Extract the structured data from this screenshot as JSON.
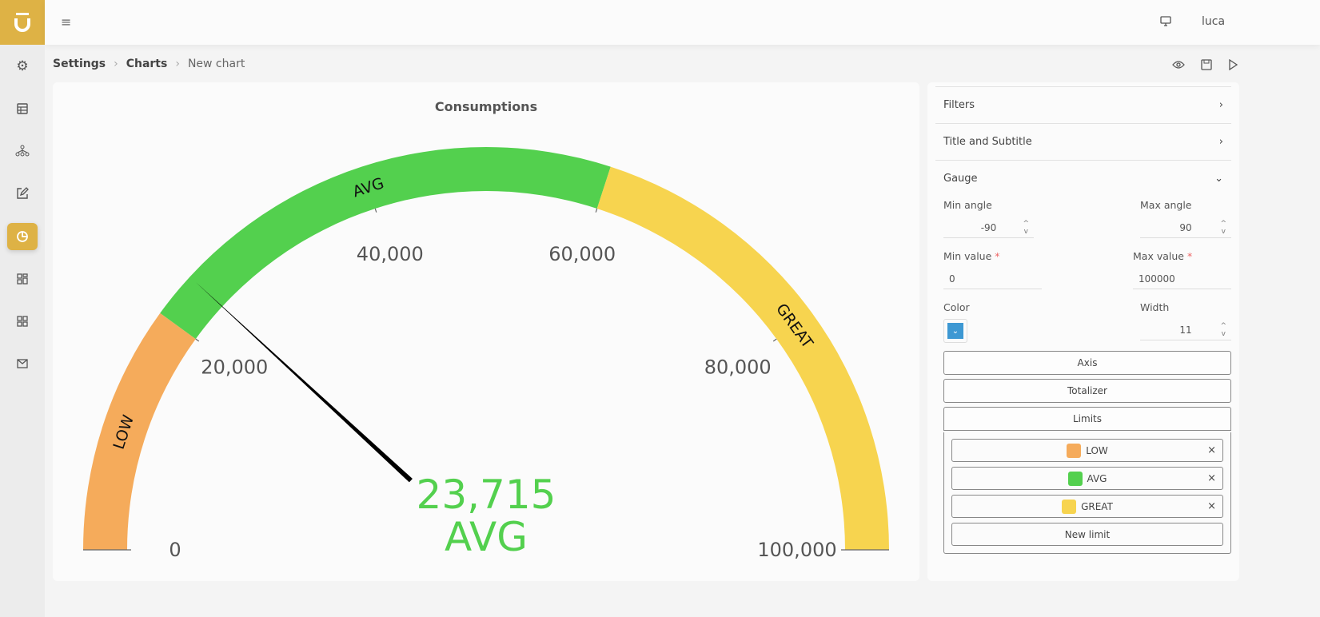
{
  "header": {
    "user": "luca"
  },
  "breadcrumb": [
    "Settings",
    "Charts",
    "New chart"
  ],
  "chart": {
    "title": "Consumptions",
    "value_text": "23,715",
    "band_text": "AVG"
  },
  "chart_data": {
    "type": "gauge",
    "title": "Consumptions",
    "min": 0,
    "max": 100000,
    "min_angle": -90,
    "max_angle": 90,
    "value": 23715,
    "tick_labels": [
      "0",
      "20,000",
      "40,000",
      "60,000",
      "80,000",
      "100,000"
    ],
    "ticks": [
      0,
      20000,
      40000,
      60000,
      80000,
      100000
    ],
    "bands": [
      {
        "name": "LOW",
        "from": 0,
        "to": 20000,
        "color": "#f5ab5b"
      },
      {
        "name": "AVG",
        "from": 20000,
        "to": 60000,
        "color": "#53d04e"
      },
      {
        "name": "GREAT",
        "from": 60000,
        "to": 100000,
        "color": "#f7d44f"
      }
    ]
  },
  "panel": {
    "filters": "Filters",
    "title_subtitle": "Title and Subtitle",
    "gauge": "Gauge",
    "min_angle_label": "Min angle",
    "min_angle": "-90",
    "max_angle_label": "Max angle",
    "max_angle": "90",
    "min_value_label": "Min value",
    "min_value": "0",
    "max_value_label": "Max value",
    "max_value": "100000",
    "required": "*",
    "color_label": "Color",
    "color": "#3d98d3",
    "width_label": "Width",
    "width": "11",
    "axis": "Axis",
    "totalizer": "Totalizer",
    "limits": "Limits",
    "limit_items": [
      {
        "label": "LOW",
        "color": "#f5ab5b"
      },
      {
        "label": "AVG",
        "color": "#53d04e"
      },
      {
        "label": "GREAT",
        "color": "#f7d44f"
      }
    ],
    "new_limit": "New limit",
    "remove": "×"
  }
}
